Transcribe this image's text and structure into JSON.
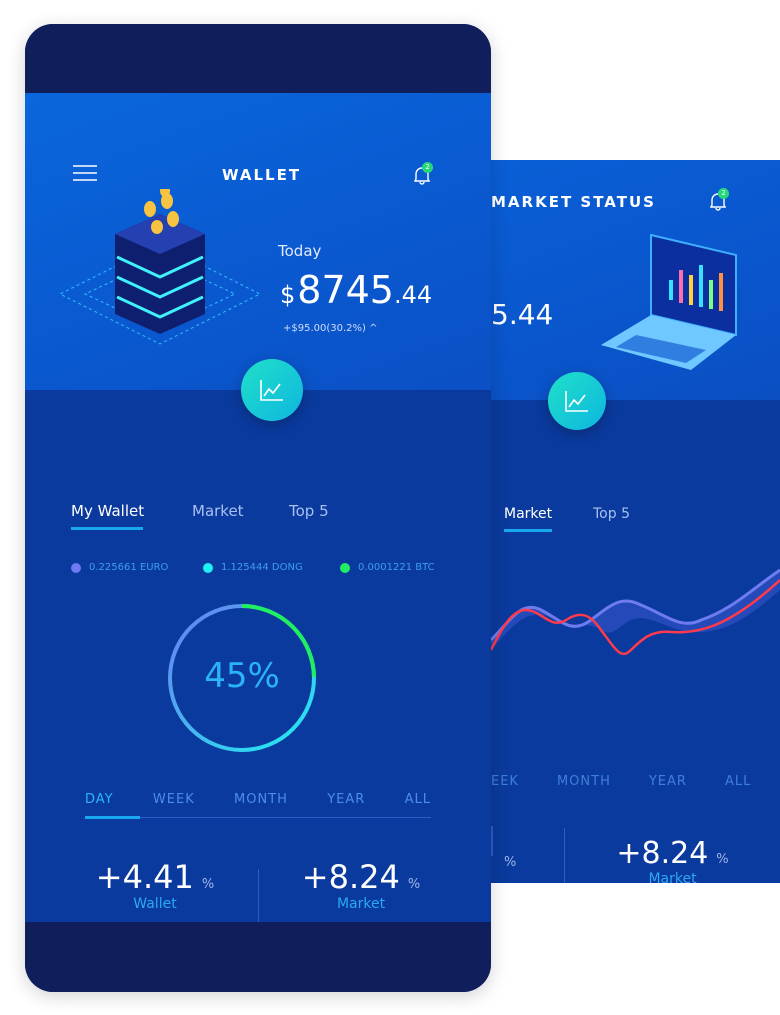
{
  "market_screen": {
    "title": "MARKET STATUS",
    "notification_count": "2",
    "balance_partial": "5.44",
    "tabs": [
      {
        "label": "Market",
        "active": true
      },
      {
        "label": "Top 5",
        "active": false
      }
    ],
    "periods": [
      "EEK",
      "MONTH",
      "YEAR",
      "ALL"
    ],
    "stats": [
      {
        "value": "",
        "unit": "%"
      },
      {
        "value": "+8.24",
        "unit": "%",
        "label": "Market"
      }
    ]
  },
  "wallet_screen": {
    "title": "WALLET",
    "notification_count": "2",
    "today_label": "Today",
    "currency": "$",
    "balance_int": "8745",
    "balance_dec": ".44",
    "change": "+$95.00(30.2%)",
    "tabs": [
      {
        "label": "My Wallet",
        "active": true
      },
      {
        "label": "Market",
        "active": false
      },
      {
        "label": "Top 5",
        "active": false
      }
    ],
    "legend": [
      {
        "label": "0.225661 EURO",
        "color": "#6c7cf0"
      },
      {
        "label": "1.125444 DONG",
        "color": "#1ef0f0"
      },
      {
        "label": "0.0001221 BTC",
        "color": "#1ef060"
      }
    ],
    "progress_percent": 45,
    "progress_label": "45%",
    "periods": [
      "DAY",
      "WEEK",
      "MONTH",
      "YEAR",
      "ALL"
    ],
    "active_period": "DAY",
    "stats": [
      {
        "value": "+4.41",
        "unit": "%",
        "label": "Wallet"
      },
      {
        "value": "+8.24",
        "unit": "%",
        "label": "Market"
      }
    ]
  },
  "colors": {
    "hero": "#0a60d8",
    "body": "#0b3a9e",
    "bar": "#101f5c",
    "accent": "#19a8f0"
  }
}
